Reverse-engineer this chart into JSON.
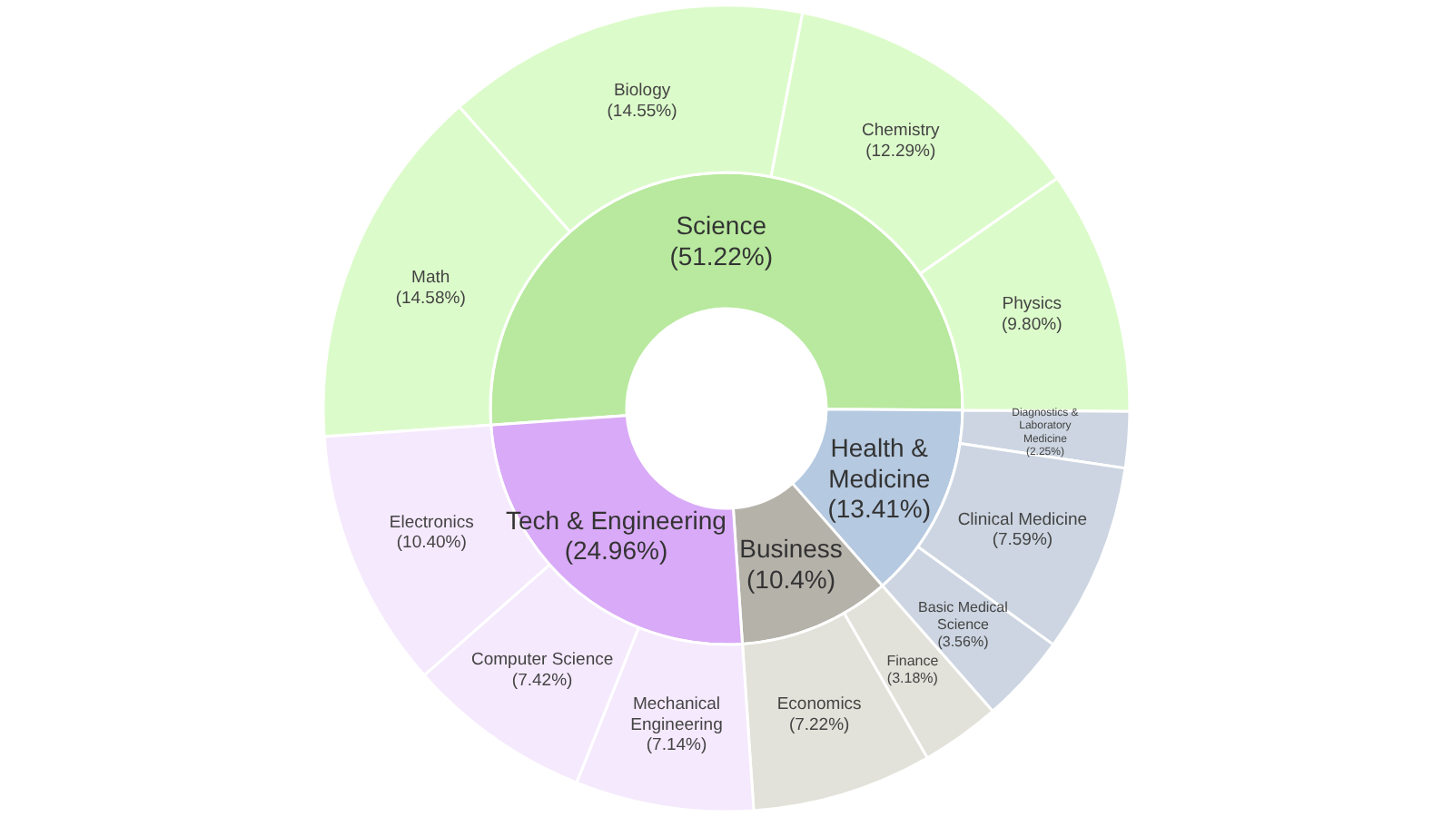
{
  "chart_data": {
    "type": "other",
    "categories": [
      "Science",
      "Health & Medicine",
      "Business",
      "Tech & Engineering",
      "Math",
      "Biology",
      "Chemistry",
      "Physics",
      "Diagnostics & Laboratory Medicine",
      "Clinical Medicine",
      "Basic Medical Science",
      "Finance",
      "Economics",
      "Mechanical Engineering",
      "Computer Science",
      "Electronics"
    ],
    "series": [
      {
        "values": [
          51.22,
          13.41,
          10.4,
          24.96,
          null,
          null,
          null,
          null,
          null,
          null,
          null,
          null,
          null,
          null,
          null,
          null
        ],
        "colors": [
          "#b8e99e",
          "#b5c9e0",
          "#b5b2aa",
          "#d9aaf7",
          null,
          null,
          null,
          null,
          null,
          null,
          null,
          null,
          null,
          null,
          null,
          null
        ],
        "value_labels": [
          "(51.22%)",
          "(13.41%)",
          "(10.4%)",
          "(24.96%)",
          null,
          null,
          null,
          null,
          null,
          null,
          null,
          null,
          null,
          null,
          null,
          null
        ]
      },
      {
        "values": [
          null,
          null,
          null,
          null,
          14.58,
          14.55,
          12.29,
          9.8,
          2.25,
          7.59,
          3.56,
          3.18,
          7.22,
          7.14,
          7.42,
          10.4
        ],
        "colors": [
          null,
          null,
          null,
          null,
          "#dcfbca",
          "#dcfbca",
          "#dcfbca",
          "#dcfbca",
          "#ccd5e1",
          "#ccd5e1",
          "#ccd5e1",
          "#e2e2da",
          "#e2e2da",
          "#f5e9fd",
          "#f5e9fd",
          "#f5e9fd"
        ],
        "value_labels": [
          null,
          null,
          null,
          null,
          "(14.58%)",
          "(14.55%)",
          "(12.29%)",
          "(9.80%)",
          "(2.25%)",
          "(7.59%)",
          "(3.56%)",
          "(3.18%)",
          "(7.22%)",
          "(7.14%)",
          "(7.42%)",
          "(10.40%)"
        ]
      }
    ],
    "legend": false
  }
}
